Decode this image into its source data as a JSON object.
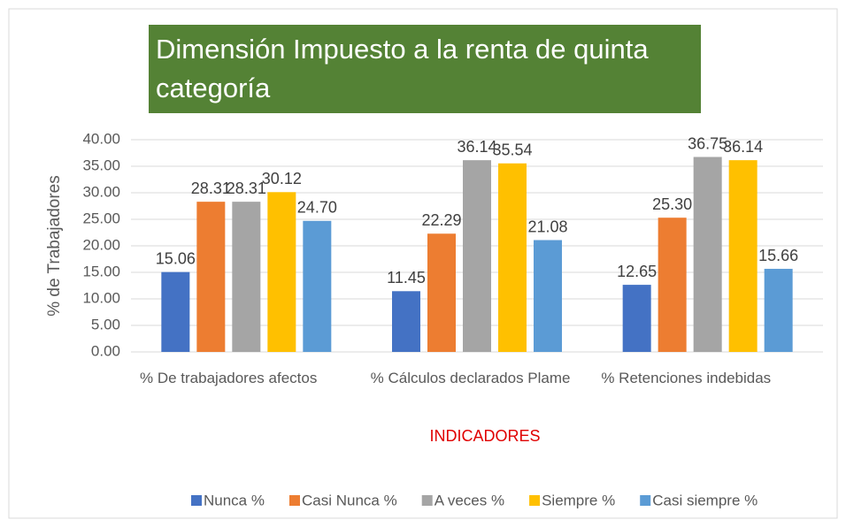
{
  "chart_data": {
    "type": "bar",
    "title": "Dimensión  Impuesto a la renta de quinta categoría",
    "categories": [
      "% De trabajadores afectos",
      "% Cálculos declarados Plame",
      "% Retenciones indebidas"
    ],
    "series": [
      {
        "name": "Nunca %",
        "color": "#4472c4",
        "values": [
          15.06,
          11.45,
          12.65
        ],
        "value_labels": [
          "15.06",
          "11.45",
          "12.65"
        ]
      },
      {
        "name": "Casi Nunca %",
        "color": "#ed7d31",
        "values": [
          28.31,
          22.29,
          25.3
        ],
        "value_labels": [
          "28.31",
          "22.29",
          "25.30"
        ]
      },
      {
        "name": "A veces %",
        "color": "#a5a5a5",
        "values": [
          28.31,
          36.14,
          36.75
        ],
        "value_labels": [
          "28.31",
          "36.14",
          "36.75"
        ]
      },
      {
        "name": "Siempre %",
        "color": "#ffc000",
        "values": [
          30.12,
          35.54,
          36.14
        ],
        "value_labels": [
          "30.12",
          "35.54",
          "36.14"
        ]
      },
      {
        "name": "Casi siempre %",
        "color": "#5b9bd5",
        "values": [
          24.7,
          21.08,
          15.66
        ],
        "value_labels": [
          "24.70",
          "21.08",
          "15.66"
        ]
      }
    ],
    "ylabel": "% de Trabajadores",
    "xlabel": "INDICADORES",
    "ylim": [
      0,
      40
    ],
    "yticks": [
      {
        "value": 0,
        "label": "0.00"
      },
      {
        "value": 5,
        "label": "5.00"
      },
      {
        "value": 10,
        "label": "10.00"
      },
      {
        "value": 15,
        "label": "15.00"
      },
      {
        "value": 20,
        "label": "20.00"
      },
      {
        "value": 25,
        "label": "25.00"
      },
      {
        "value": 30,
        "label": "30.00"
      },
      {
        "value": 35,
        "label": "35.00"
      },
      {
        "value": 40,
        "label": "40.00"
      }
    ],
    "grid": true,
    "legend": "bottom"
  }
}
